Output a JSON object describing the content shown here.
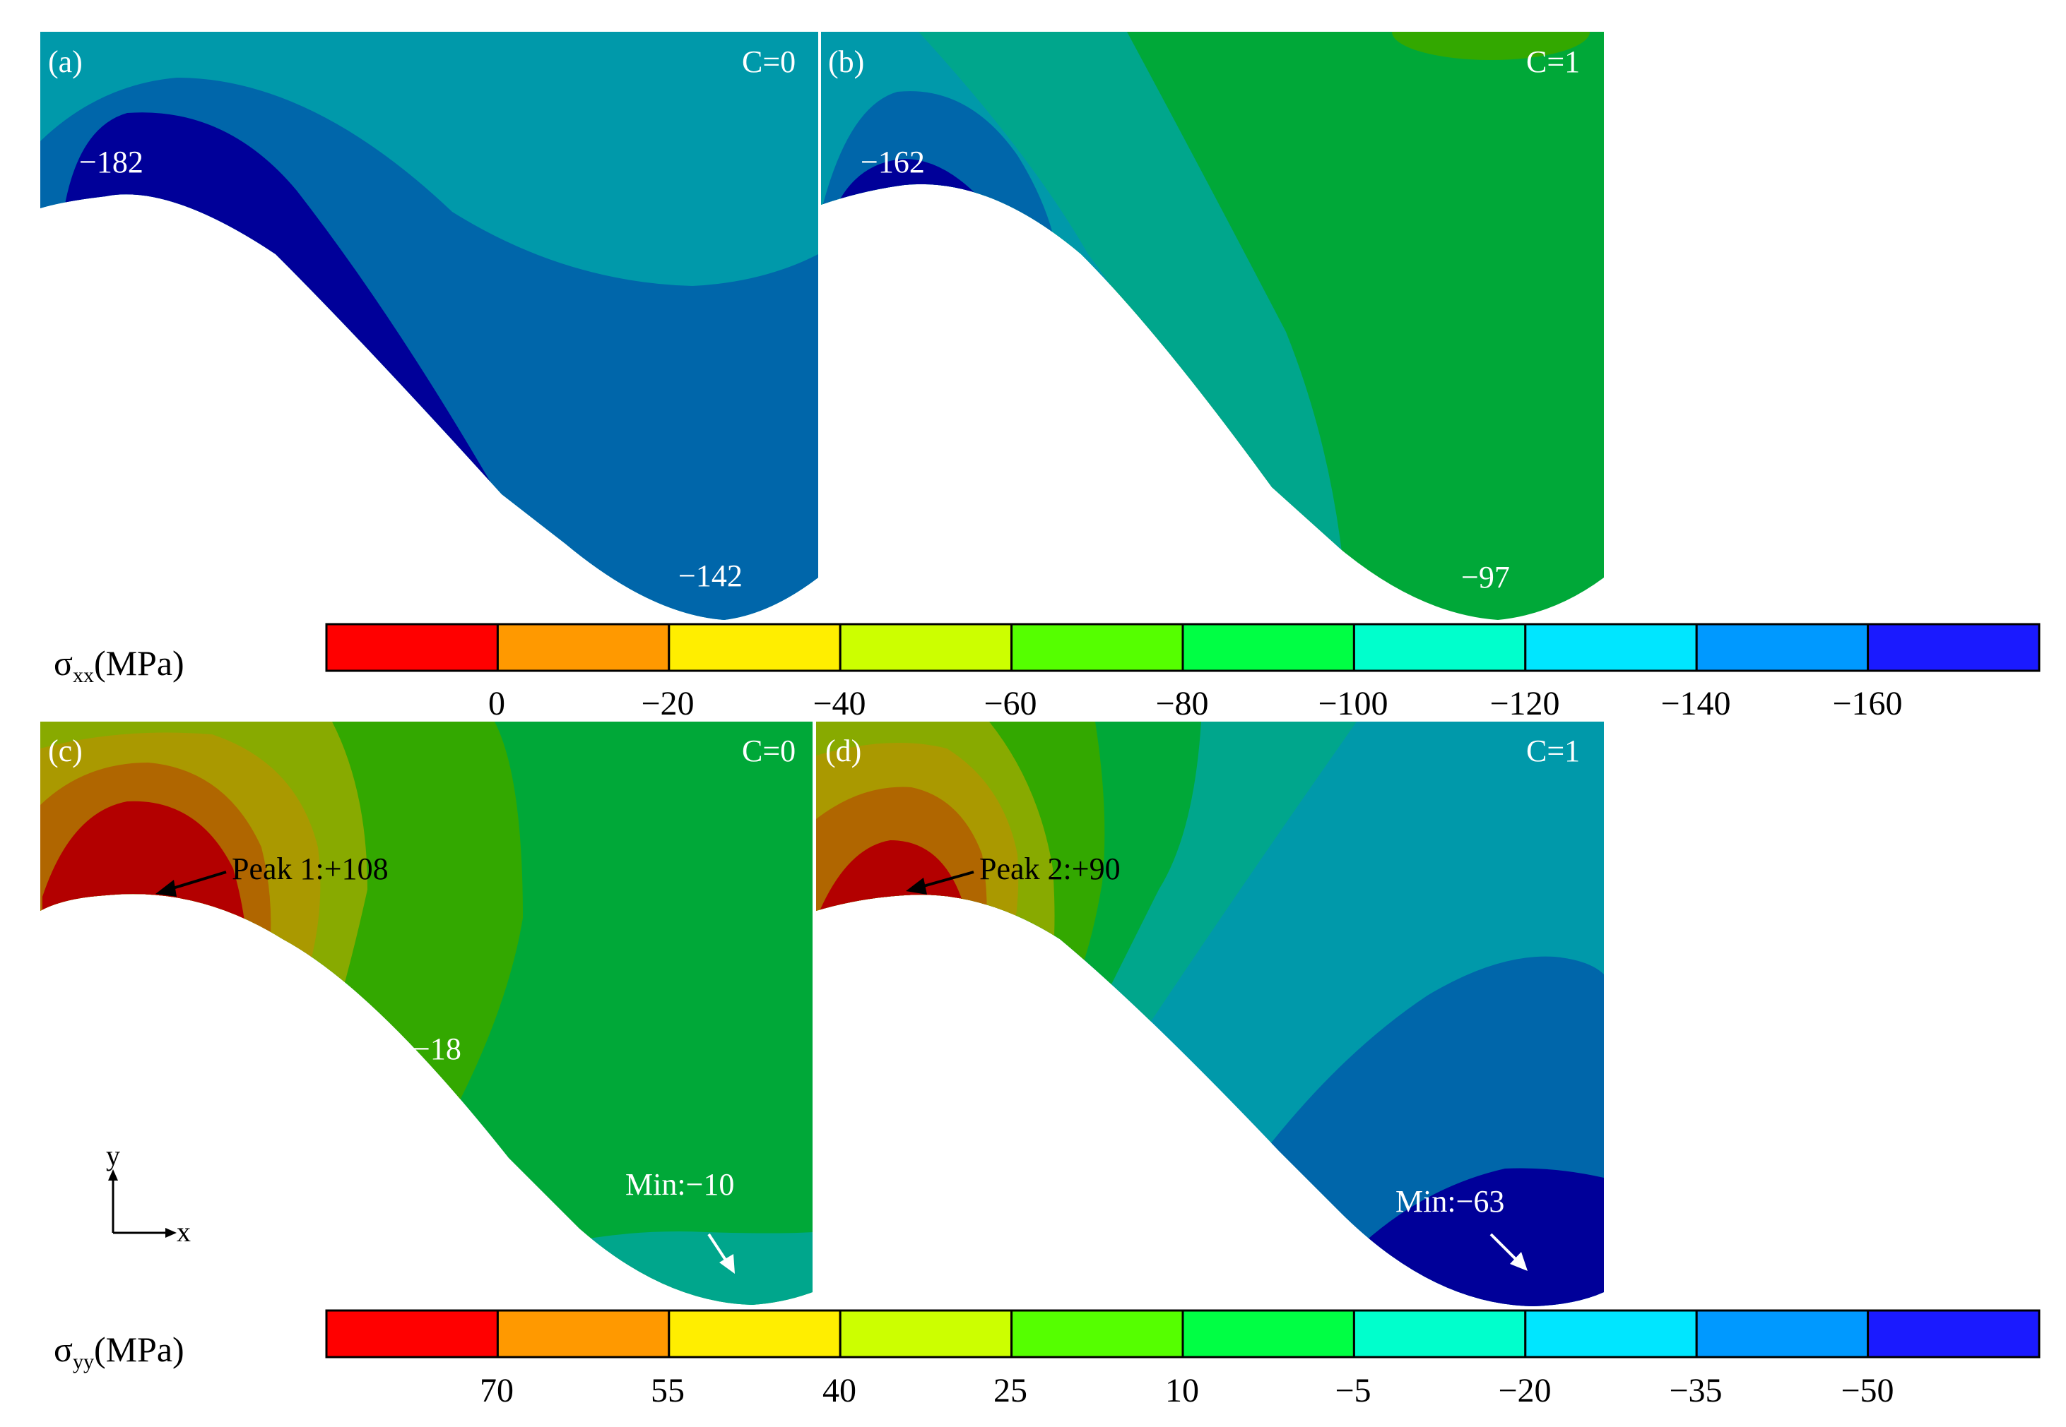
{
  "panels": [
    {
      "label": "(a)",
      "condition": "C=0",
      "annotations": [
        "−182",
        "−142"
      ]
    },
    {
      "label": "(b)",
      "condition": "C=1",
      "annotations": [
        "−162",
        "−97"
      ]
    },
    {
      "label": "(c)",
      "condition": "C=0",
      "annotations": [
        "Peak 1:+108",
        "−18",
        "Min:−10"
      ]
    },
    {
      "label": "(d)",
      "condition": "C=1",
      "annotations": [
        "Peak 2:+90",
        "Min:−63"
      ]
    }
  ],
  "colorbars": [
    {
      "symbol": "σ",
      "subscript": "xx",
      "unit": "(MPa)",
      "ticks": [
        "0",
        "−20",
        "−40",
        "−60",
        "−80",
        "−100",
        "−120",
        "−140",
        "−160"
      ]
    },
    {
      "symbol": "σ",
      "subscript": "yy",
      "unit": "(MPa)",
      "ticks": [
        "70",
        "55",
        "40",
        "25",
        "10",
        "−5",
        "−20",
        "−35",
        "−50"
      ]
    }
  ],
  "colorbar_colors": [
    "#ff0000",
    "#ff9900",
    "#ffee00",
    "#ccff00",
    "#55ff00",
    "#00ff44",
    "#00ffcc",
    "#00e6ff",
    "#0099ff",
    "#1a1aff"
  ],
  "field_colors": {
    "blue_dark": "#000099",
    "blue_med": "#0066aa",
    "teal": "#0099aa",
    "teal_green": "#00a68c",
    "green": "#00a838",
    "green_lime": "#33a800",
    "olive_green": "#88aa00",
    "olive": "#aa9900",
    "brown": "#b06600",
    "red": "#b30000"
  },
  "axes": {
    "y": "y",
    "x": "x"
  }
}
